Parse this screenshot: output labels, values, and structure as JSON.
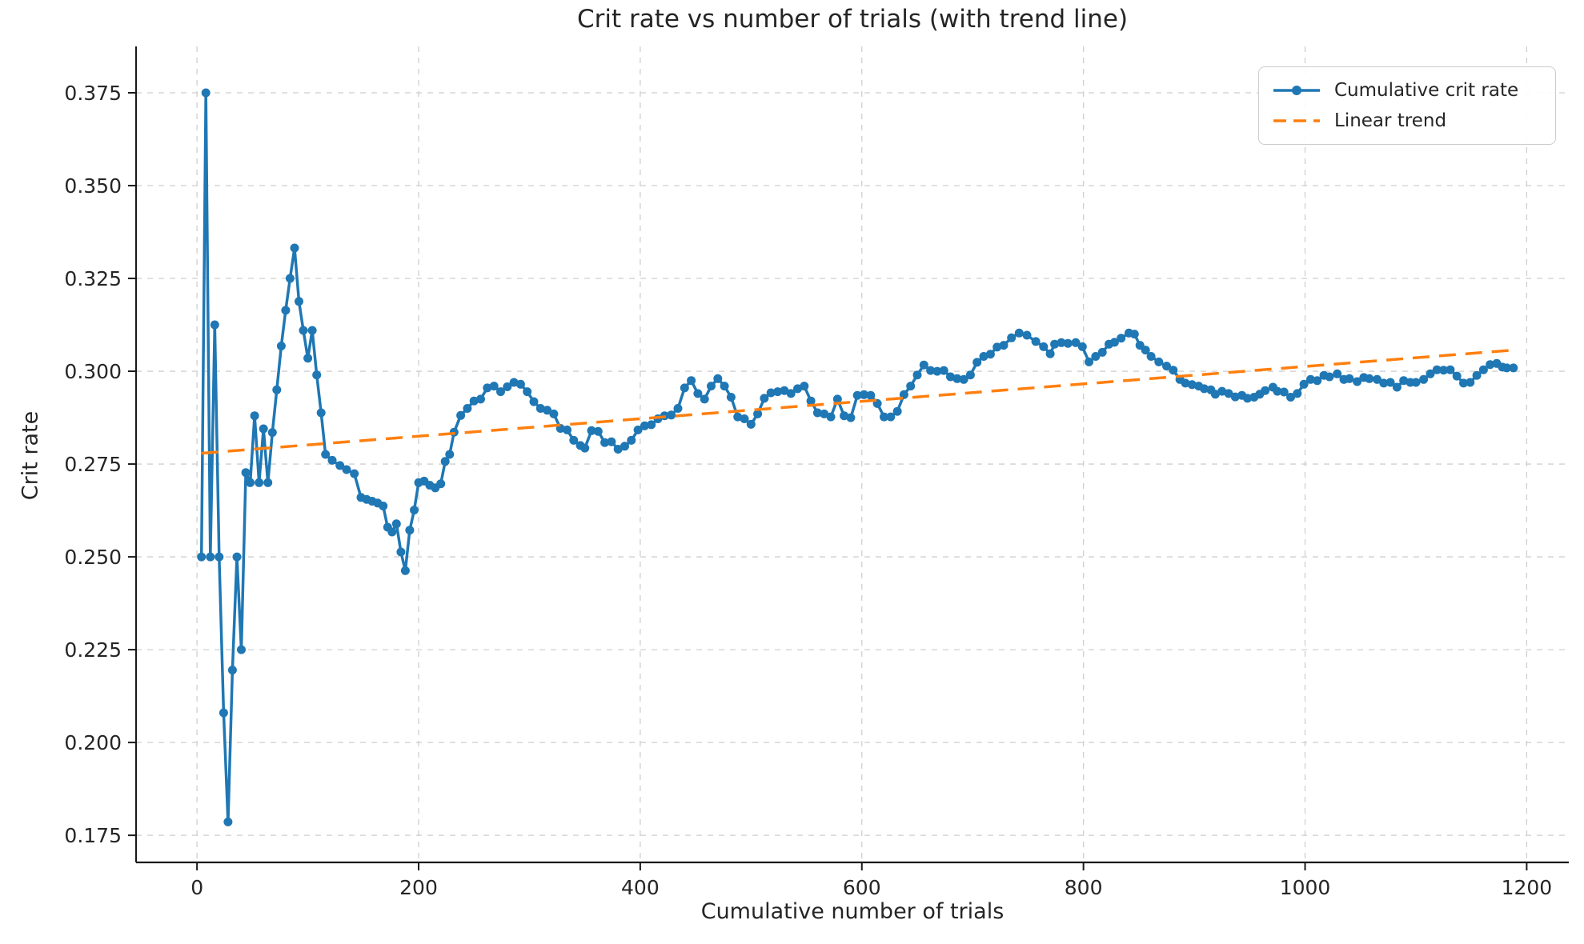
{
  "chart_data": {
    "type": "line",
    "title": "Crit rate vs number of trials (with trend line)",
    "xlabel": "Cumulative number of trials",
    "ylabel": "Crit rate",
    "grid": true,
    "legend_position": "upper right",
    "xlim": [
      -55,
      1238
    ],
    "ylim": [
      0.1677,
      0.3875
    ],
    "x_ticks": [
      0,
      200,
      400,
      600,
      800,
      1000,
      1200
    ],
    "x_tick_labels": [
      "0",
      "200",
      "400",
      "600",
      "800",
      "1000",
      "1200"
    ],
    "y_ticks": [
      0.175,
      0.2,
      0.225,
      0.25,
      0.275,
      0.3,
      0.325,
      0.35,
      0.375
    ],
    "y_tick_labels": [
      "0.175",
      "0.200",
      "0.225",
      "0.250",
      "0.275",
      "0.300",
      "0.325",
      "0.350",
      "0.375"
    ],
    "series": [
      {
        "name": "Cumulative crit rate",
        "style": "solid-with-markers",
        "color": "#1f77b4",
        "x": [
          4,
          8,
          12,
          16,
          20,
          24,
          28,
          32,
          36,
          40,
          44,
          48,
          52,
          56,
          60,
          64,
          68,
          72,
          76,
          80,
          84,
          88,
          92,
          96,
          100,
          104,
          108,
          112,
          116,
          122,
          129,
          135,
          142,
          148,
          153,
          158,
          163,
          168,
          172,
          176,
          180,
          184,
          188,
          192,
          196,
          200,
          205,
          210,
          215,
          220,
          224,
          228,
          232,
          238,
          244,
          250,
          256,
          262,
          268,
          274,
          280,
          286,
          292,
          298,
          304,
          310,
          316,
          322,
          328,
          334,
          340,
          346,
          350,
          356,
          362,
          368,
          374,
          380,
          386,
          392,
          398,
          404,
          410,
          416,
          422,
          428,
          434,
          440,
          446,
          452,
          458,
          464,
          470,
          476,
          482,
          488,
          494,
          500,
          506,
          512,
          518,
          524,
          530,
          536,
          542,
          548,
          554,
          560,
          566,
          572,
          578,
          584,
          590,
          596,
          602,
          608,
          614,
          620,
          626,
          632,
          638,
          644,
          650,
          656,
          662,
          668,
          674,
          680,
          686,
          692,
          698,
          704,
          710,
          716,
          722,
          728,
          735,
          742,
          749,
          757,
          764,
          770,
          774,
          780,
          786,
          793,
          799,
          805,
          811,
          817,
          823,
          828,
          834,
          841,
          846,
          851,
          856,
          861,
          868,
          875,
          881,
          887,
          892,
          898,
          904,
          909,
          915,
          919,
          925,
          931,
          937,
          943,
          948,
          954,
          959,
          964,
          971,
          975,
          981,
          987,
          993,
          999,
          1005,
          1011,
          1017,
          1022,
          1029,
          1035,
          1040,
          1047,
          1053,
          1058,
          1065,
          1071,
          1077,
          1083,
          1089,
          1095,
          1100,
          1107,
          1113,
          1119,
          1125,
          1131,
          1137,
          1143,
          1149,
          1155,
          1161,
          1167,
          1173,
          1178,
          1182,
          1188
        ],
        "y": [
          0.25,
          0.375,
          0.25,
          0.3125,
          0.25,
          0.208,
          0.1786,
          0.2195,
          0.25,
          0.225,
          0.2727,
          0.27,
          0.288,
          0.27,
          0.2845,
          0.27,
          0.2835,
          0.295,
          0.3068,
          0.3164,
          0.325,
          0.3332,
          0.3188,
          0.311,
          0.3035,
          0.311,
          0.299,
          0.2888,
          0.2776,
          0.276,
          0.2746,
          0.2735,
          0.2724,
          0.266,
          0.2655,
          0.265,
          0.2645,
          0.2637,
          0.258,
          0.2567,
          0.2589,
          0.2513,
          0.2463,
          0.2572,
          0.2626,
          0.27,
          0.2704,
          0.2693,
          0.2686,
          0.2697,
          0.2757,
          0.2776,
          0.2836,
          0.2881,
          0.29,
          0.292,
          0.2925,
          0.2955,
          0.296,
          0.2945,
          0.2958,
          0.297,
          0.2965,
          0.2945,
          0.2918,
          0.29,
          0.2895,
          0.2885,
          0.2846,
          0.2842,
          0.2814,
          0.28,
          0.2793,
          0.284,
          0.2838,
          0.2808,
          0.281,
          0.279,
          0.2798,
          0.2814,
          0.2842,
          0.2853,
          0.2856,
          0.2872,
          0.288,
          0.2882,
          0.29,
          0.2955,
          0.2975,
          0.294,
          0.2925,
          0.296,
          0.298,
          0.296,
          0.293,
          0.2877,
          0.2872,
          0.2857,
          0.2885,
          0.2927,
          0.2942,
          0.2945,
          0.2948,
          0.294,
          0.2953,
          0.296,
          0.292,
          0.2888,
          0.2885,
          0.2877,
          0.2925,
          0.288,
          0.2875,
          0.2935,
          0.2937,
          0.2935,
          0.2913,
          0.2877,
          0.2877,
          0.2892,
          0.2937,
          0.296,
          0.299,
          0.3017,
          0.3002,
          0.3,
          0.3002,
          0.2985,
          0.298,
          0.2978,
          0.299,
          0.3024,
          0.304,
          0.3046,
          0.3065,
          0.307,
          0.309,
          0.3103,
          0.3097,
          0.308,
          0.3066,
          0.3047,
          0.3073,
          0.3077,
          0.3075,
          0.3077,
          0.3066,
          0.3025,
          0.304,
          0.3051,
          0.3073,
          0.3078,
          0.3089,
          0.3103,
          0.31,
          0.307,
          0.3057,
          0.304,
          0.3025,
          0.3014,
          0.3003,
          0.2978,
          0.2968,
          0.2964,
          0.296,
          0.2953,
          0.295,
          0.2938,
          0.2946,
          0.294,
          0.2931,
          0.2935,
          0.2927,
          0.293,
          0.2938,
          0.2948,
          0.2957,
          0.2946,
          0.2944,
          0.293,
          0.294,
          0.2965,
          0.2978,
          0.2975,
          0.2989,
          0.2985,
          0.2993,
          0.2978,
          0.298,
          0.2972,
          0.2983,
          0.298,
          0.2978,
          0.2968,
          0.297,
          0.2957,
          0.2975,
          0.297,
          0.297,
          0.2978,
          0.2993,
          0.3004,
          0.3003,
          0.3004,
          0.2987,
          0.2968,
          0.297,
          0.2989,
          0.3004,
          0.3018,
          0.3021,
          0.3011,
          0.3009,
          0.3009
        ]
      },
      {
        "name": "Linear trend",
        "style": "dashed",
        "color": "#ff7f0e",
        "x": [
          4,
          1188
        ],
        "y": [
          0.2779,
          0.3057
        ]
      }
    ],
    "colors": {
      "series_blue": "#1f77b4",
      "trend_orange": "#ff7f0e",
      "grid": "#cfcfcf",
      "spine": "#1a1a1a",
      "text": "#252525",
      "background": "#ffffff"
    }
  }
}
